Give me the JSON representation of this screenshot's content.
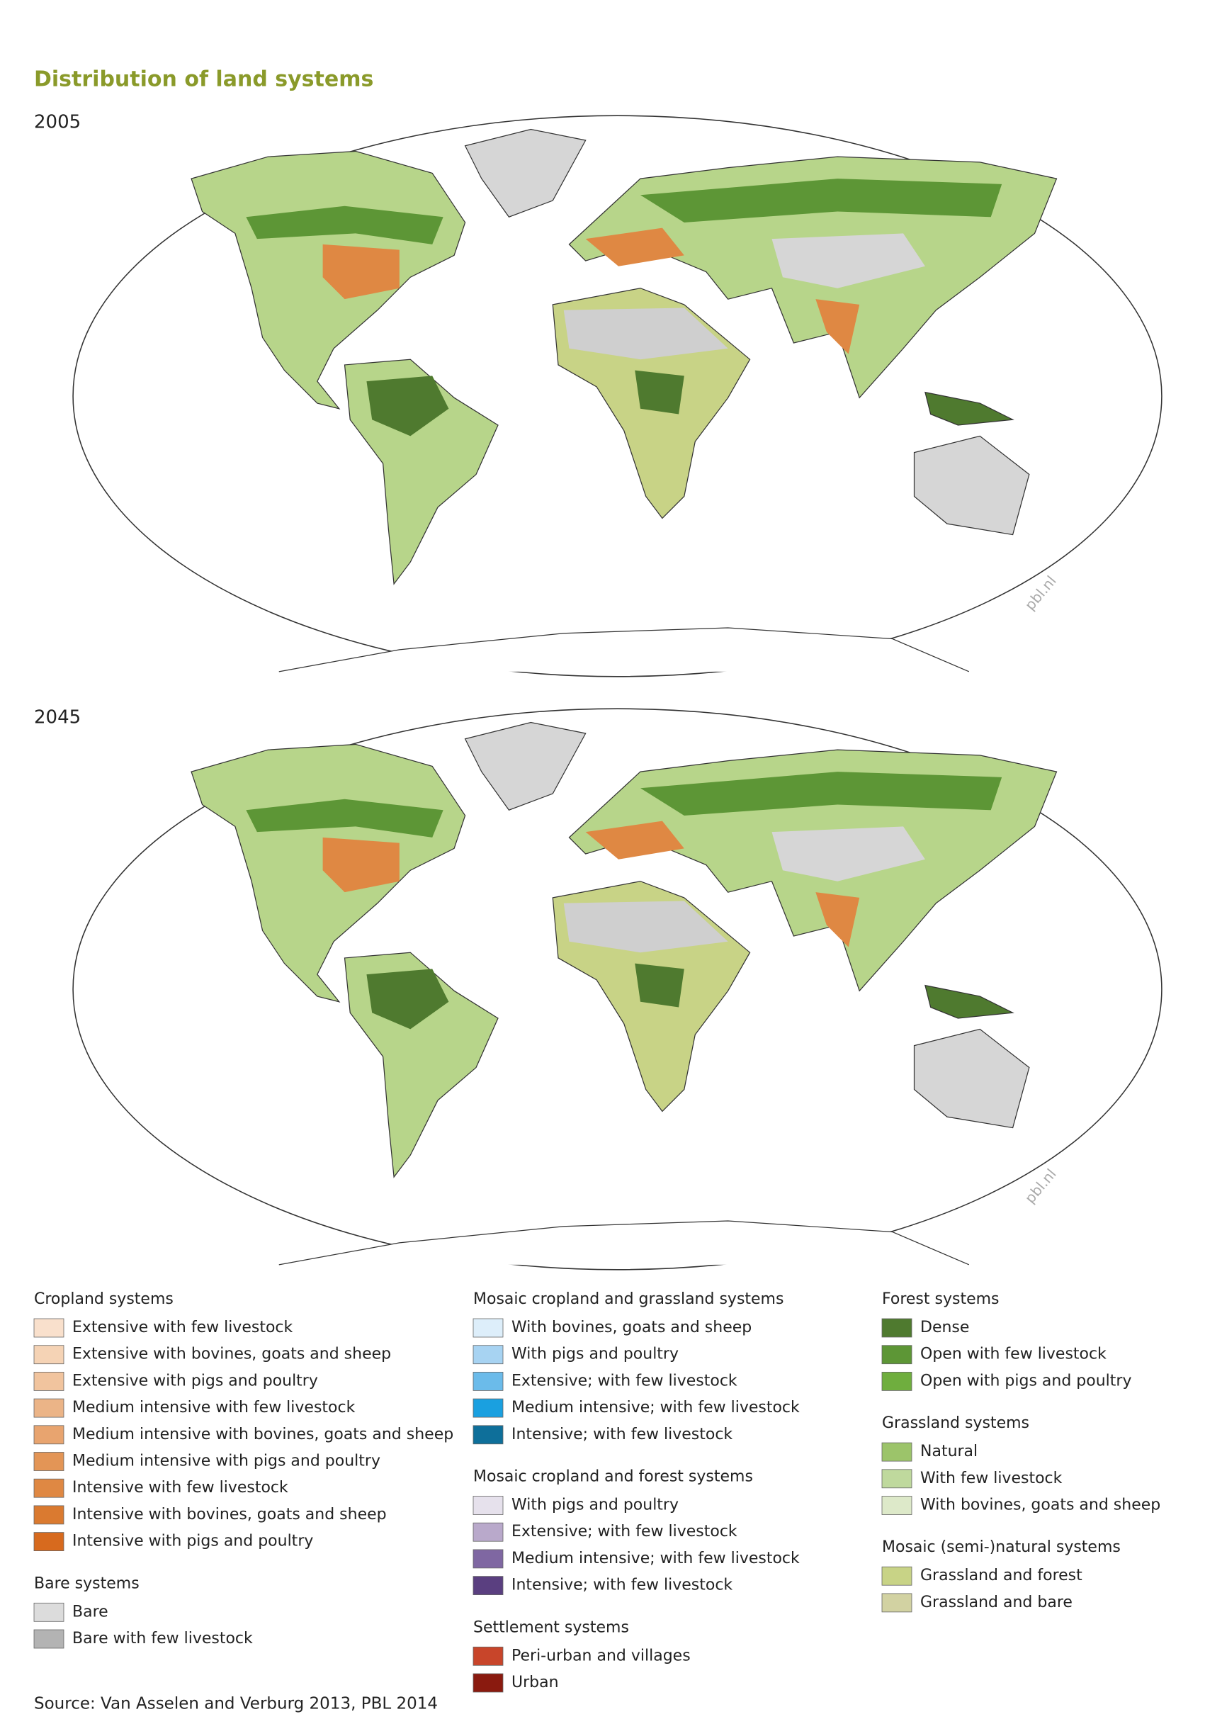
{
  "title": "Distribution of land systems",
  "maps": [
    {
      "year": "2005",
      "watermark": "pbl.nl"
    },
    {
      "year": "2045",
      "watermark": "pbl.nl"
    }
  ],
  "legend": {
    "columns": [
      {
        "groups": [
          {
            "title": "Cropland systems",
            "items": [
              {
                "label": "Extensive with few livestock",
                "color": "#f9e0cc"
              },
              {
                "label": "Extensive with bovines, goats and sheep",
                "color": "#f5d3b5"
              },
              {
                "label": "Extensive with pigs and poultry",
                "color": "#f1c49e"
              },
              {
                "label": "Medium intensive with few livestock",
                "color": "#ebb487"
              },
              {
                "label": "Medium intensive with bovines, goats and sheep",
                "color": "#e8a46f"
              },
              {
                "label": "Medium intensive with pigs and poultry",
                "color": "#e39556"
              },
              {
                "label": "Intensive with few livestock",
                "color": "#df8843"
              },
              {
                "label": "Intensive with bovines, goats and sheep",
                "color": "#da7a30"
              },
              {
                "label": "Intensive with pigs and poultry",
                "color": "#d76a1e"
              }
            ]
          },
          {
            "title": "Bare systems",
            "items": [
              {
                "label": "Bare",
                "color": "#dcdcdc"
              },
              {
                "label": "Bare with few livestock",
                "color": "#b3b3b3"
              }
            ]
          }
        ]
      },
      {
        "groups": [
          {
            "title": "Mosaic cropland and grassland systems",
            "items": [
              {
                "label": "With bovines, goats and sheep",
                "color": "#ddeefa"
              },
              {
                "label": "With pigs and poultry",
                "color": "#a7d3f2"
              },
              {
                "label": "Extensive; with few livestock",
                "color": "#6bbbea"
              },
              {
                "label": "Medium intensive; with few livestock",
                "color": "#1aa0e0"
              },
              {
                "label": "Intensive; with few livestock",
                "color": "#0e6f9a"
              }
            ]
          },
          {
            "title": "Mosaic cropland and forest systems",
            "items": [
              {
                "label": "With pigs and poultry",
                "color": "#e6e1ec"
              },
              {
                "label": "Extensive; with few livestock",
                "color": "#b9a9cb"
              },
              {
                "label": "Medium intensive; with few livestock",
                "color": "#7f67a2"
              },
              {
                "label": "Intensive; with few livestock",
                "color": "#5a3f80"
              }
            ]
          },
          {
            "title": "Settlement systems",
            "items": [
              {
                "label": "Peri-urban and villages",
                "color": "#c8452a"
              },
              {
                "label": "Urban",
                "color": "#8a1a0f"
              }
            ]
          }
        ]
      },
      {
        "groups": [
          {
            "title": "Forest systems",
            "items": [
              {
                "label": "Dense",
                "color": "#4f7a2f"
              },
              {
                "label": "Open with few livestock",
                "color": "#5d9636"
              },
              {
                "label": "Open with pigs and poultry",
                "color": "#6fae3e"
              }
            ]
          },
          {
            "title": "Grassland systems",
            "items": [
              {
                "label": "Natural",
                "color": "#9cc46a"
              },
              {
                "label": "With few livestock",
                "color": "#bfd99d"
              },
              {
                "label": "With bovines, goats and sheep",
                "color": "#dde9c9"
              }
            ]
          },
          {
            "title": "Mosaic (semi-)natural systems",
            "items": [
              {
                "label": "Grassland and forest",
                "color": "#c8d386"
              },
              {
                "label": "Grassland and bare",
                "color": "#d2d2a2"
              }
            ]
          }
        ]
      }
    ]
  },
  "source": "Source: Van Asselen and Verburg 2013, PBL 2014"
}
